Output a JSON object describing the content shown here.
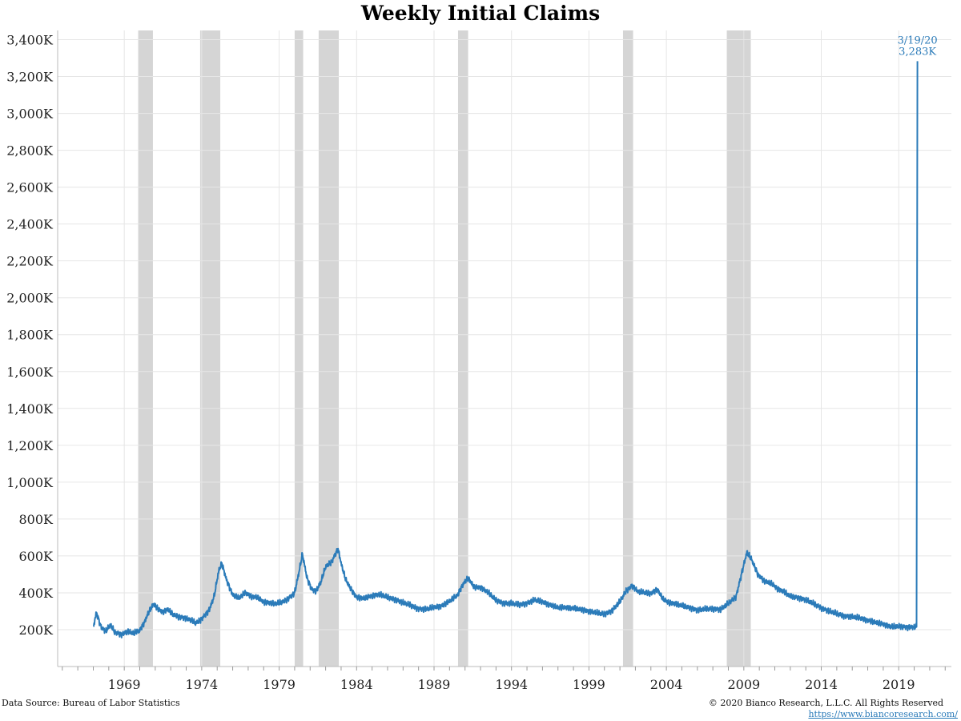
{
  "chart_data": {
    "type": "line",
    "title": "Weekly Initial Claims",
    "xlabel": "",
    "ylabel": "",
    "x_tick_labels": [
      "1969",
      "1974",
      "1979",
      "1984",
      "1989",
      "1994",
      "1999",
      "2004",
      "2009",
      "2014",
      "2019"
    ],
    "y_tick_labels": [
      "200K",
      "400K",
      "600K",
      "800K",
      "1,000K",
      "1,200K",
      "1,400K",
      "1,600K",
      "1,800K",
      "2,000K",
      "2,200K",
      "2,400K",
      "2,600K",
      "2,800K",
      "3,000K",
      "3,200K",
      "3,400K"
    ],
    "xlim": [
      1964.7,
      2022.4
    ],
    "ylim": [
      0,
      3450
    ],
    "y_unit": "thousands",
    "grid": true,
    "series": [
      {
        "color": "#2b7bb9",
        "points": [
          [
            1967.0,
            210
          ],
          [
            1967.2,
            295
          ],
          [
            1967.5,
            215
          ],
          [
            1967.8,
            190
          ],
          [
            1968.1,
            225
          ],
          [
            1968.4,
            185
          ],
          [
            1968.8,
            175
          ],
          [
            1969.2,
            190
          ],
          [
            1969.6,
            180
          ],
          [
            1970.0,
            195
          ],
          [
            1970.3,
            240
          ],
          [
            1970.6,
            300
          ],
          [
            1970.9,
            340
          ],
          [
            1971.2,
            310
          ],
          [
            1971.5,
            295
          ],
          [
            1971.8,
            310
          ],
          [
            1972.1,
            285
          ],
          [
            1972.5,
            270
          ],
          [
            1972.9,
            265
          ],
          [
            1973.3,
            250
          ],
          [
            1973.6,
            235
          ],
          [
            1973.9,
            250
          ],
          [
            1974.2,
            280
          ],
          [
            1974.5,
            310
          ],
          [
            1974.8,
            380
          ],
          [
            1975.1,
            520
          ],
          [
            1975.3,
            560
          ],
          [
            1975.6,
            470
          ],
          [
            1976.0,
            390
          ],
          [
            1976.4,
            370
          ],
          [
            1976.8,
            400
          ],
          [
            1977.2,
            380
          ],
          [
            1977.6,
            375
          ],
          [
            1978.0,
            350
          ],
          [
            1978.4,
            345
          ],
          [
            1978.8,
            340
          ],
          [
            1979.2,
            350
          ],
          [
            1979.6,
            370
          ],
          [
            1980.0,
            400
          ],
          [
            1980.3,
            520
          ],
          [
            1980.5,
            610
          ],
          [
            1980.8,
            480
          ],
          [
            1981.1,
            420
          ],
          [
            1981.4,
            410
          ],
          [
            1981.7,
            460
          ],
          [
            1982.0,
            540
          ],
          [
            1982.4,
            570
          ],
          [
            1982.8,
            640
          ],
          [
            1983.0,
            560
          ],
          [
            1983.3,
            470
          ],
          [
            1983.7,
            410
          ],
          [
            1984.0,
            375
          ],
          [
            1984.5,
            370
          ],
          [
            1985.0,
            385
          ],
          [
            1985.5,
            390
          ],
          [
            1986.0,
            375
          ],
          [
            1986.5,
            365
          ],
          [
            1987.0,
            345
          ],
          [
            1987.5,
            330
          ],
          [
            1988.0,
            315
          ],
          [
            1988.5,
            310
          ],
          [
            1989.0,
            320
          ],
          [
            1989.5,
            330
          ],
          [
            1990.0,
            355
          ],
          [
            1990.5,
            385
          ],
          [
            1990.9,
            450
          ],
          [
            1991.2,
            480
          ],
          [
            1991.6,
            430
          ],
          [
            1992.0,
            430
          ],
          [
            1992.5,
            400
          ],
          [
            1993.0,
            360
          ],
          [
            1993.5,
            345
          ],
          [
            1994.0,
            340
          ],
          [
            1994.5,
            335
          ],
          [
            1995.0,
            345
          ],
          [
            1995.5,
            360
          ],
          [
            1996.0,
            350
          ],
          [
            1996.5,
            335
          ],
          [
            1997.0,
            320
          ],
          [
            1997.5,
            320
          ],
          [
            1998.0,
            315
          ],
          [
            1998.5,
            310
          ],
          [
            1999.0,
            300
          ],
          [
            1999.5,
            290
          ],
          [
            2000.0,
            285
          ],
          [
            2000.5,
            305
          ],
          [
            2001.0,
            350
          ],
          [
            2001.4,
            410
          ],
          [
            2001.8,
            440
          ],
          [
            2002.2,
            405
          ],
          [
            2002.6,
            400
          ],
          [
            2003.0,
            395
          ],
          [
            2003.4,
            420
          ],
          [
            2003.8,
            365
          ],
          [
            2004.2,
            345
          ],
          [
            2004.6,
            340
          ],
          [
            2005.0,
            330
          ],
          [
            2005.5,
            320
          ],
          [
            2006.0,
            305
          ],
          [
            2006.5,
            310
          ],
          [
            2007.0,
            315
          ],
          [
            2007.5,
            310
          ],
          [
            2008.0,
            340
          ],
          [
            2008.5,
            380
          ],
          [
            2008.9,
            520
          ],
          [
            2009.2,
            620
          ],
          [
            2009.5,
            580
          ],
          [
            2009.9,
            500
          ],
          [
            2010.3,
            465
          ],
          [
            2010.8,
            450
          ],
          [
            2011.2,
            420
          ],
          [
            2011.6,
            405
          ],
          [
            2012.0,
            380
          ],
          [
            2012.5,
            375
          ],
          [
            2013.0,
            360
          ],
          [
            2013.5,
            340
          ],
          [
            2014.0,
            320
          ],
          [
            2014.5,
            300
          ],
          [
            2015.0,
            285
          ],
          [
            2015.5,
            275
          ],
          [
            2016.0,
            270
          ],
          [
            2016.5,
            262
          ],
          [
            2017.0,
            250
          ],
          [
            2017.5,
            240
          ],
          [
            2018.0,
            230
          ],
          [
            2018.5,
            215
          ],
          [
            2019.0,
            218
          ],
          [
            2019.5,
            215
          ],
          [
            2020.0,
            212
          ],
          [
            2020.15,
            215
          ],
          [
            2020.21,
            3283
          ]
        ]
      }
    ],
    "recession_bands": [
      [
        1969.9,
        1970.85
      ],
      [
        1973.9,
        1975.2
      ],
      [
        1980.0,
        1980.55
      ],
      [
        1981.55,
        1982.85
      ],
      [
        1990.55,
        1991.2
      ],
      [
        2001.2,
        2001.85
      ],
      [
        2007.9,
        2009.45
      ]
    ],
    "annotation": {
      "date": "3/19/20",
      "value": "3,283K"
    }
  },
  "footer": {
    "source": "Data Source: Bureau of Labor Statistics",
    "copyright": "© 2020  Bianco Research, L.L.C. All Rights Reserved",
    "url": "https://www.biancoresearch.com/"
  },
  "colors": {
    "line": "#2b7bb9",
    "recession": "#d5d5d5",
    "grid": "#e6e6e6"
  }
}
